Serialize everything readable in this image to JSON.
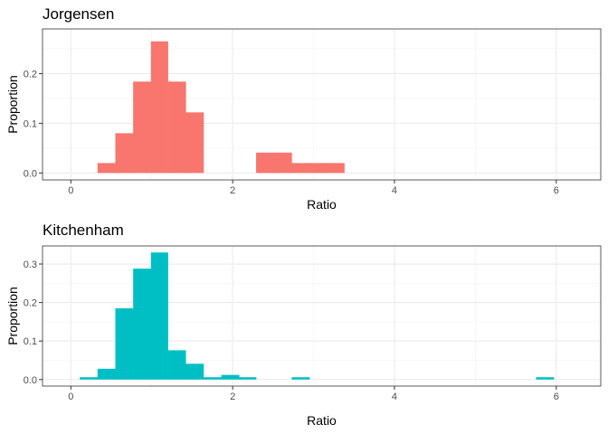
{
  "chart_data": [
    {
      "type": "bar",
      "title": "Jorgensen",
      "xlabel": "Ratio",
      "ylabel": "Proportion",
      "color": "#F8766D",
      "xlim": [
        -0.35,
        6.55
      ],
      "ylim": [
        -0.014,
        0.29
      ],
      "x_breaks": [
        0,
        2,
        4,
        6
      ],
      "x_minor": [
        1,
        3,
        5
      ],
      "y_breaks": [
        0.0,
        0.1,
        0.2
      ],
      "y_minor": [
        0.05,
        0.15,
        0.25
      ],
      "x_tick_labels": [
        "0",
        "2",
        "4",
        "6"
      ],
      "y_tick_labels": [
        "0.0",
        "0.1",
        "0.2"
      ],
      "bins": [
        {
          "x0": 0.33,
          "x1": 0.55,
          "value": 0.02
        },
        {
          "x0": 0.55,
          "x1": 0.77,
          "value": 0.08
        },
        {
          "x0": 0.77,
          "x1": 0.99,
          "value": 0.184
        },
        {
          "x0": 0.99,
          "x1": 1.2,
          "value": 0.265
        },
        {
          "x0": 1.2,
          "x1": 1.42,
          "value": 0.184
        },
        {
          "x0": 1.42,
          "x1": 1.64,
          "value": 0.122
        },
        {
          "x0": 2.29,
          "x1": 2.51,
          "value": 0.041
        },
        {
          "x0": 2.51,
          "x1": 2.73,
          "value": 0.041
        },
        {
          "x0": 2.73,
          "x1": 2.95,
          "value": 0.02
        },
        {
          "x0": 2.95,
          "x1": 3.16,
          "value": 0.02
        },
        {
          "x0": 3.16,
          "x1": 3.38,
          "value": 0.02
        }
      ]
    },
    {
      "type": "bar",
      "title": "Kitchenham",
      "xlabel": "Ratio",
      "ylabel": "Proportion",
      "color": "#00BFC4",
      "xlim": [
        -0.35,
        6.55
      ],
      "ylim": [
        -0.017,
        0.347
      ],
      "x_breaks": [
        0,
        2,
        4,
        6
      ],
      "x_minor": [
        1,
        3,
        5
      ],
      "y_breaks": [
        0.0,
        0.1,
        0.2,
        0.3
      ],
      "y_minor": [
        0.05,
        0.15,
        0.25
      ],
      "x_tick_labels": [
        "0",
        "2",
        "4",
        "6"
      ],
      "y_tick_labels": [
        "0.0",
        "0.1",
        "0.2",
        "0.3"
      ],
      "bins": [
        {
          "x0": 0.11,
          "x1": 0.33,
          "value": 0.006
        },
        {
          "x0": 0.33,
          "x1": 0.55,
          "value": 0.028
        },
        {
          "x0": 0.55,
          "x1": 0.77,
          "value": 0.185
        },
        {
          "x0": 0.77,
          "x1": 0.99,
          "value": 0.288
        },
        {
          "x0": 0.99,
          "x1": 1.2,
          "value": 0.33
        },
        {
          "x0": 1.2,
          "x1": 1.42,
          "value": 0.076
        },
        {
          "x0": 1.42,
          "x1": 1.64,
          "value": 0.041
        },
        {
          "x0": 1.64,
          "x1": 1.86,
          "value": 0.006
        },
        {
          "x0": 1.86,
          "x1": 2.08,
          "value": 0.012
        },
        {
          "x0": 2.08,
          "x1": 2.29,
          "value": 0.006
        },
        {
          "x0": 2.73,
          "x1": 2.95,
          "value": 0.006
        },
        {
          "x0": 5.75,
          "x1": 5.97,
          "value": 0.006
        }
      ]
    }
  ]
}
